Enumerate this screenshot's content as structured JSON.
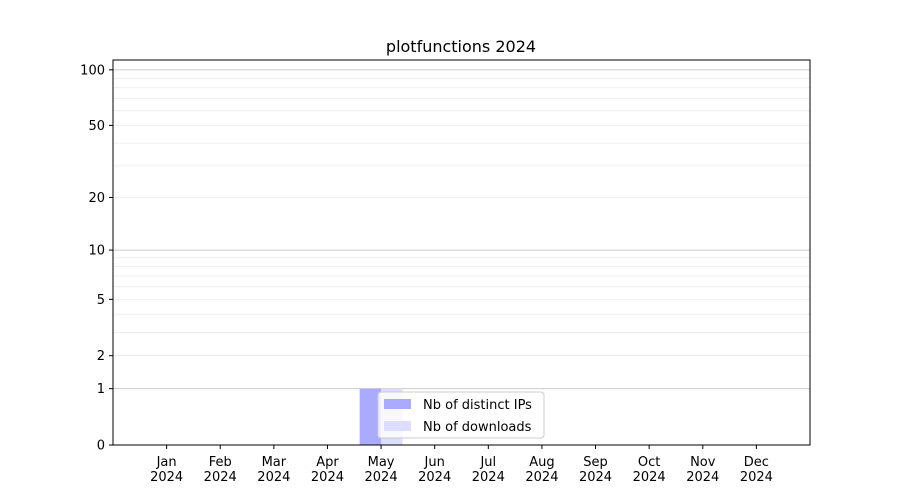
{
  "chart_data": {
    "type": "bar",
    "title": "plotfunctions 2024",
    "xlabel": "",
    "ylabel": "",
    "y_scale": "log10(1+y)",
    "ylim": [
      0,
      113
    ],
    "yticks": [
      0,
      1,
      2,
      5,
      10,
      20,
      50,
      100
    ],
    "ytick_labels": [
      "0",
      "1",
      "2",
      "5",
      "10",
      "20",
      "50",
      "100"
    ],
    "major_grid": [
      1,
      10,
      100
    ],
    "minor_grid": [
      2,
      3,
      4,
      5,
      6,
      7,
      8,
      9,
      20,
      30,
      40,
      50,
      60,
      70,
      80,
      90
    ],
    "grid": true,
    "categories": [
      "Jan\n2024",
      "Feb\n2024",
      "Mar\n2024",
      "Apr\n2024",
      "May\n2024",
      "Jun\n2024",
      "Jul\n2024",
      "Aug\n2024",
      "Sep\n2024",
      "Oct\n2024",
      "Nov\n2024",
      "Dec\n2024"
    ],
    "month_labels": [
      "Jan",
      "Feb",
      "Mar",
      "Apr",
      "May",
      "Jun",
      "Jul",
      "Aug",
      "Sep",
      "Oct",
      "Nov",
      "Dec"
    ],
    "year_label": "2024",
    "series": [
      {
        "name": "Nb of distinct IPs",
        "color": "#aaaaff",
        "values": [
          0,
          0,
          0,
          0,
          1,
          0,
          0,
          0,
          0,
          0,
          0,
          0
        ]
      },
      {
        "name": "Nb of downloads",
        "color": "#ddddff",
        "values": [
          0,
          0,
          0,
          0,
          1,
          0,
          0,
          0,
          0,
          0,
          0,
          0
        ]
      }
    ],
    "legend_position": "lower center"
  }
}
